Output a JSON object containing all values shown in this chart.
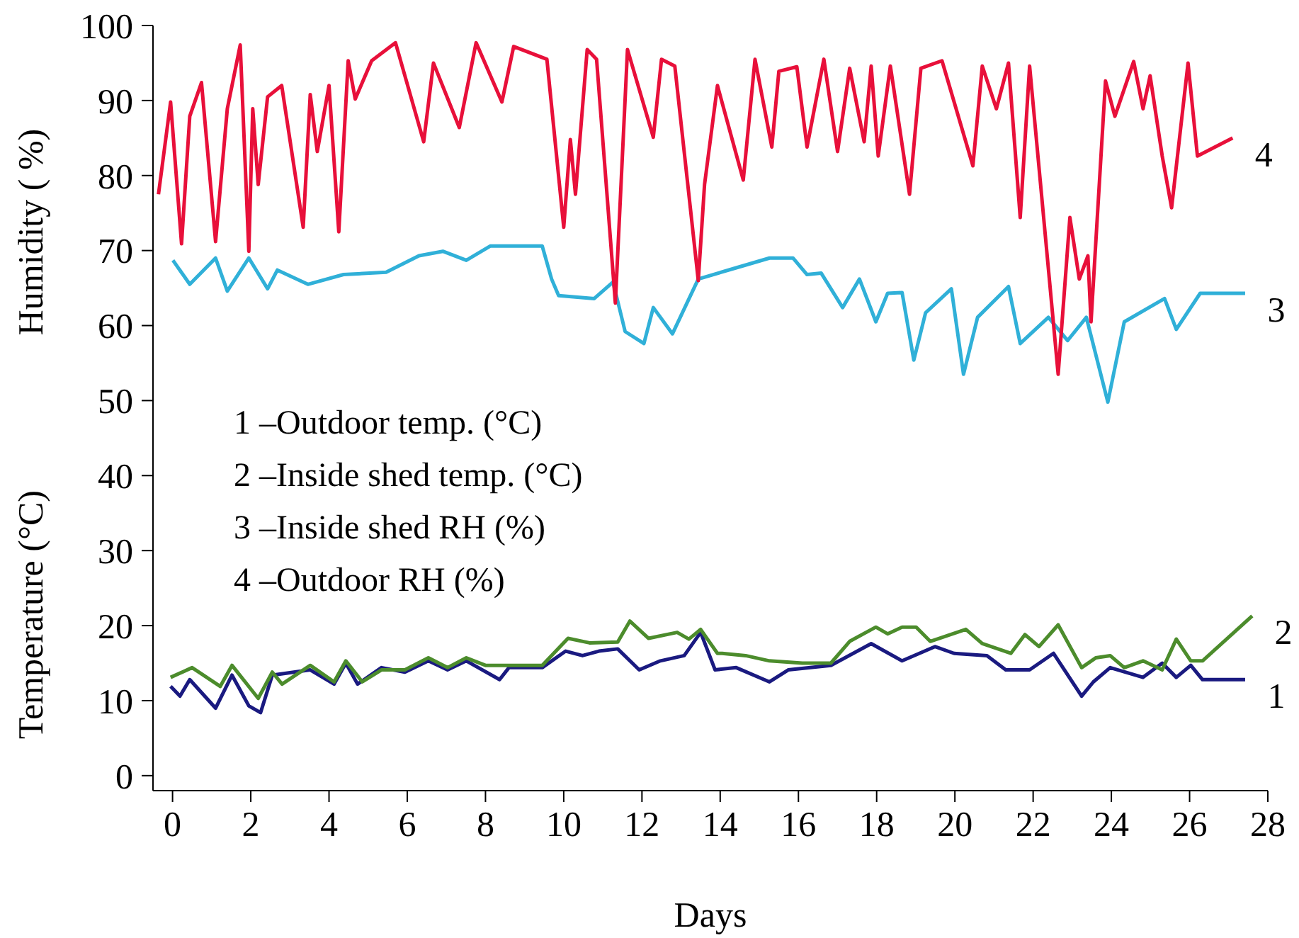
{
  "chart_data": {
    "type": "line",
    "xlabel": "Days",
    "ylabel": "Humidity ( %)",
    "annotations": [
      "1 –Outdoor temp. (°C)",
      "2 –Inside shed temp. (°C)",
      "3 –Inside shed RH (%)",
      "4 –Outdoor RH (%)",
      "Temperature (°C)"
    ],
    "xlim": [
      -0.5,
      28
    ],
    "xticks": [
      0,
      2,
      4,
      6,
      8,
      10,
      12,
      14,
      16,
      18,
      20,
      22,
      24,
      26,
      28
    ],
    "ylim": [
      -2,
      100
    ],
    "yticks": [
      0,
      10,
      20,
      30,
      40,
      50,
      60,
      70,
      80,
      90,
      100
    ],
    "grid": false,
    "legend": false,
    "marker": "none",
    "line_style": "solid",
    "series": [
      {
        "name": "1",
        "color": "#1a1a80",
        "x": [
          -0.05,
          0.19,
          0.44,
          1.1,
          1.52,
          1.95,
          2.25,
          2.55,
          3.52,
          4.13,
          4.43,
          4.73,
          5.34,
          5.94,
          6.54,
          7.03,
          7.51,
          8.36,
          8.6,
          9.45,
          10.05,
          10.48,
          10.9,
          11.38,
          11.93,
          12.47,
          13.08,
          13.5,
          13.87,
          14.41,
          15.26,
          15.74,
          16.83,
          17.86,
          18.65,
          19.49,
          19.98,
          20.82,
          21.3,
          21.91,
          22.52,
          23.24,
          23.54,
          23.97,
          24.81,
          25.3,
          25.66,
          26.03,
          26.33,
          27.42
        ],
        "values": [
          11.9,
          10.6,
          12.8,
          9,
          13.4,
          9.3,
          8.4,
          13.4,
          14.1,
          12.2,
          15,
          12.2,
          14.4,
          13.8,
          15.3,
          14.1,
          15.3,
          12.8,
          14.4,
          14.4,
          16.6,
          16,
          16.6,
          16.9,
          14.1,
          15.3,
          16,
          19.1,
          14.1,
          14.4,
          12.5,
          14.1,
          14.7,
          17.6,
          15.3,
          17.2,
          16.3,
          16,
          14.1,
          14.1,
          16.3,
          10.6,
          12.5,
          14.4,
          13.1,
          15,
          13.1,
          14.7,
          12.8,
          12.8
        ]
      },
      {
        "name": "2",
        "color": "#4c8c2c",
        "x": [
          -0.05,
          0.5,
          1.22,
          1.52,
          2.19,
          2.55,
          2.8,
          3.52,
          4.13,
          4.43,
          4.85,
          5.34,
          5.94,
          6.54,
          7.03,
          7.51,
          8.0,
          9.45,
          10.11,
          10.66,
          11.38,
          11.69,
          12.17,
          12.9,
          13.2,
          13.5,
          13.93,
          14.05,
          14.65,
          15.26,
          16.1,
          16.83,
          17.31,
          17.98,
          18.28,
          18.65,
          19.01,
          19.37,
          20.28,
          20.7,
          21.43,
          21.79,
          22.15,
          22.64,
          23.24,
          23.6,
          23.97,
          24.33,
          24.81,
          25.3,
          25.66,
          26.03,
          26.33,
          27.6
        ],
        "values": [
          13.1,
          14.4,
          11.9,
          14.7,
          10.3,
          13.8,
          12.2,
          14.7,
          12.5,
          15.3,
          12.5,
          14.1,
          14.1,
          15.7,
          14.4,
          15.7,
          14.7,
          14.7,
          18.3,
          17.7,
          17.8,
          20.6,
          18.3,
          19.1,
          18.2,
          19.5,
          16.3,
          16.3,
          16,
          15.3,
          15,
          15,
          17.9,
          19.8,
          18.9,
          19.8,
          19.8,
          17.9,
          19.5,
          17.6,
          16.3,
          18.8,
          17.2,
          20.1,
          14.4,
          15.7,
          16,
          14.4,
          15.3,
          14.1,
          18.2,
          15.3,
          15.3,
          21.3
        ]
      },
      {
        "name": "3",
        "color": "#30b0d8",
        "x": [
          0.01,
          0.44,
          1.1,
          1.4,
          1.95,
          2.43,
          2.68,
          3.46,
          4.37,
          5.46,
          6.3,
          6.91,
          7.51,
          8.12,
          9.45,
          9.69,
          9.87,
          10.78,
          11.26,
          11.57,
          12.05,
          12.29,
          12.78,
          13.44,
          14.41,
          15.26,
          15.86,
          16.22,
          16.58,
          17.13,
          17.56,
          17.98,
          18.28,
          18.65,
          18.95,
          19.25,
          19.91,
          20.22,
          20.58,
          21.37,
          21.67,
          22.39,
          22.88,
          23.36,
          23.91,
          24.33,
          25.36,
          25.66,
          26.27,
          27.42
        ],
        "values": [
          68.7,
          65.5,
          69,
          64.6,
          69,
          64.9,
          67.4,
          65.5,
          66.8,
          67.1,
          69.3,
          69.9,
          68.7,
          70.6,
          70.6,
          66.2,
          64,
          63.6,
          65.8,
          59.2,
          57.6,
          62.4,
          58.9,
          66.2,
          67.7,
          69,
          69,
          66.8,
          67,
          62.4,
          66.2,
          60.5,
          64.3,
          64.4,
          55.4,
          61.7,
          64.9,
          53.5,
          61.1,
          65.2,
          57.6,
          61.1,
          58,
          61.1,
          49.8,
          60.5,
          63.6,
          59.5,
          64.3,
          64.3
        ]
      },
      {
        "name": "4",
        "color": "#e8103a",
        "x": [
          -0.36,
          -0.05,
          0.23,
          0.44,
          0.74,
          1.1,
          1.4,
          1.73,
          1.95,
          2.05,
          2.19,
          2.43,
          2.79,
          3.34,
          3.52,
          3.7,
          4.0,
          4.25,
          4.49,
          4.67,
          5.09,
          5.7,
          6.42,
          6.67,
          7.33,
          7.76,
          8.42,
          8.72,
          9.57,
          10.0,
          10.17,
          10.3,
          10.6,
          10.84,
          11.32,
          11.63,
          12.29,
          12.5,
          12.84,
          13.44,
          13.6,
          13.93,
          14.59,
          14.89,
          15.32,
          15.5,
          15.96,
          16.22,
          16.65,
          17.0,
          17.31,
          17.68,
          17.86,
          18.04,
          18.35,
          18.84,
          19.13,
          19.67,
          20.46,
          20.7,
          21.06,
          21.37,
          21.67,
          21.91,
          22.64,
          22.94,
          23.18,
          23.4,
          23.48,
          23.85,
          24.09,
          24.57,
          24.81,
          24.99,
          25.3,
          25.54,
          25.96,
          26.2,
          27.1
        ],
        "values": [
          77.5,
          89.8,
          70.9,
          87.9,
          92.4,
          71.2,
          88.9,
          97.4,
          69.9,
          88.9,
          78.8,
          90.5,
          92,
          73.1,
          90.8,
          83.2,
          92,
          72.5,
          95.3,
          90.2,
          95.3,
          97.7,
          84.5,
          95,
          86.4,
          97.7,
          89.8,
          97.2,
          95.5,
          73.1,
          84.8,
          77.5,
          96.8,
          95.5,
          63,
          96.8,
          85.1,
          95.5,
          94.6,
          66,
          78.8,
          92,
          79.4,
          95.5,
          83.8,
          93.9,
          94.5,
          83.8,
          95.5,
          83.2,
          94.3,
          84.5,
          94.6,
          82.6,
          94.6,
          77.5,
          94.3,
          95.3,
          81.3,
          94.6,
          88.9,
          95,
          74.4,
          94.6,
          53.5,
          74.4,
          66.2,
          69.3,
          60.5,
          92.6,
          87.9,
          95.2,
          88.9,
          93.3,
          82.6,
          75.7,
          95,
          82.6,
          85
        ]
      }
    ]
  }
}
